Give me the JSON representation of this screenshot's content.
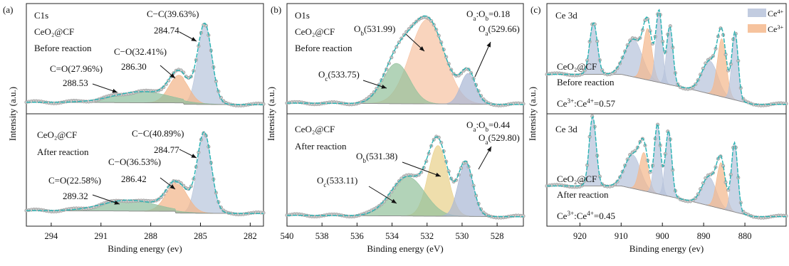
{
  "colors": {
    "frame": "#222222",
    "fit": "#26b3b3",
    "raw": "#9a9a9a",
    "background_line": "#8a8a8a",
    "C_CC": "#b9c6dc",
    "C_CO": "#f3b68a",
    "C_O_double": "#8fbf9e",
    "O_a": "#aab8d6",
    "O_b_before": "#f6c3a4",
    "O_b_after": "#e9d18c",
    "O_c": "#94c29d",
    "Ce4": "#b7c3db",
    "Ce3": "#f4b98d"
  },
  "chart_data": [
    {
      "type": "area",
      "panel_label": "(a)",
      "ylabel": "Intensity (a.u.)",
      "xlabel": "Binding energy (ev)",
      "xlim": [
        295.5,
        281.2
      ],
      "x_reversed": true,
      "xticks": [
        294,
        291,
        288,
        285,
        282
      ],
      "subplots": [
        {
          "element": "C1s",
          "sample": "CeO₂@CF",
          "condition": "Before reaction",
          "peaks": [
            {
              "name": "C−C",
              "percent": "C−C(39.63%)",
              "center": 284.74,
              "center_label": "284.74",
              "height": 0.86,
              "fwhm": 1.0
            },
            {
              "name": "C−O",
              "percent": "C−O(32.41%)",
              "center": 286.3,
              "center_label": "286.30",
              "height": 0.3,
              "fwhm": 1.4
            },
            {
              "name": "C=O",
              "percent": "C=O(27.96%)",
              "center": 288.53,
              "center_label": "288.53",
              "height": 0.12,
              "fwhm": 4.0
            }
          ]
        },
        {
          "sample": "CeO₂@CF",
          "condition": "After reaction",
          "peaks": [
            {
              "name": "C−C",
              "percent": "C−C(40.89%)",
              "center": 284.77,
              "center_label": "284.77",
              "height": 0.88,
              "fwhm": 1.0
            },
            {
              "name": "C−O",
              "percent": "C−O(36.53%)",
              "center": 286.42,
              "center_label": "286.42",
              "height": 0.32,
              "fwhm": 1.5
            },
            {
              "name": "C=O",
              "percent": "C=O(22.58%)",
              "center": 289.32,
              "center_label": "289.32",
              "height": 0.12,
              "fwhm": 3.8
            }
          ]
        }
      ]
    },
    {
      "type": "area",
      "panel_label": "(b)",
      "ylabel": "Intensity (a.u.)",
      "xlabel": "Binding energy (eV)",
      "xlim": [
        540,
        526.5
      ],
      "x_reversed": true,
      "xticks": [
        540,
        538,
        536,
        534,
        532,
        530,
        528
      ],
      "subplots": [
        {
          "element": "O1s",
          "sample": "CeO₂@CF",
          "condition": "Before reaction",
          "ratio_text": "Oₐ:O_b=0.18",
          "ratio": {
            "lhs": "O",
            "lhs_sub": "a",
            "rhs": "O",
            "rhs_sub": "b",
            "value": "0.18"
          },
          "peaks": [
            {
              "name": "Ob",
              "main": "O",
              "sub": "b",
              "center": 531.99,
              "center_label": "(531.99)",
              "height": 0.88,
              "fwhm": 2.3
            },
            {
              "name": "Oc",
              "main": "O",
              "sub": "c",
              "center": 533.75,
              "center_label": "(533.75)",
              "height": 0.42,
              "fwhm": 1.8
            },
            {
              "name": "Oa",
              "main": "O",
              "sub": "a",
              "center": 529.66,
              "center_label": "(529.66)",
              "height": 0.32,
              "fwhm": 1.0
            }
          ]
        },
        {
          "sample": "CeO₂@CF",
          "condition": "After reaction",
          "ratio_text": "Oₐ:O_b=0.44",
          "ratio": {
            "lhs": "O",
            "lhs_sub": "a",
            "rhs": "O",
            "rhs_sub": "b",
            "value": "0.44"
          },
          "peaks": [
            {
              "name": "Ob",
              "main": "O",
              "sub": "b",
              "center": 531.38,
              "center_label": "(531.38)",
              "height": 0.72,
              "fwhm": 1.3
            },
            {
              "name": "Oc",
              "main": "O",
              "sub": "c",
              "center": 533.11,
              "center_label": "(533.11)",
              "height": 0.4,
              "fwhm": 2.3
            },
            {
              "name": "Oa",
              "main": "O",
              "sub": "a",
              "center": 529.8,
              "center_label": "(529.80)",
              "height": 0.55,
              "fwhm": 1.0
            }
          ]
        }
      ]
    },
    {
      "type": "area",
      "panel_label": "(c)",
      "ylabel": "Intensity (a.u.)",
      "xlabel": "Binding energy (ev)",
      "xlim": [
        928,
        870
      ],
      "x_reversed": true,
      "xticks": [
        920,
        910,
        900,
        890,
        880
      ],
      "legend": [
        {
          "name": "Ce⁴⁺",
          "main": "Ce",
          "sup": "4+",
          "color_key": "Ce4"
        },
        {
          "name": "Ce³⁺",
          "main": "Ce",
          "sup": "3+",
          "color_key": "Ce3"
        }
      ],
      "legend_position": "top-right",
      "subplots": [
        {
          "element": "Ce 3d",
          "sample": "CeO₂@CF",
          "condition": "Before reaction",
          "ratio_text": "Ce³⁺:Ce⁴⁺=0.57",
          "ratio": {
            "lhs": "Ce",
            "lhs_sup": "3+",
            "rhs": "Ce",
            "rhs_sup": "4+",
            "value": "0.57"
          },
          "peaks": [
            {
              "species": "Ce4",
              "center": 916.7,
              "height": 0.55,
              "fwhm": 2.2
            },
            {
              "species": "Ce4",
              "center": 907.0,
              "height": 0.4,
              "fwhm": 5.0
            },
            {
              "species": "Ce3",
              "center": 903.6,
              "height": 0.55,
              "fwhm": 2.5
            },
            {
              "species": "Ce4",
              "center": 900.8,
              "height": 0.75,
              "fwhm": 1.8
            },
            {
              "species": "Ce4",
              "center": 898.2,
              "height": 0.62,
              "fwhm": 1.8
            },
            {
              "species": "Ce4",
              "center": 888.5,
              "height": 0.35,
              "fwhm": 4.5
            },
            {
              "species": "Ce3",
              "center": 885.6,
              "height": 0.62,
              "fwhm": 2.5
            },
            {
              "species": "Ce4",
              "center": 882.4,
              "height": 0.72,
              "fwhm": 1.8
            }
          ]
        },
        {
          "element": "Ce 3d",
          "sample": "CeO₂@CF",
          "condition": "After reaction",
          "ratio_text": "Ce³⁺:Ce⁴⁺=0.45",
          "ratio": {
            "lhs": "Ce",
            "lhs_sup": "3+",
            "rhs": "Ce",
            "rhs_sup": "4+",
            "value": "0.45"
          },
          "peaks": [
            {
              "species": "Ce4",
              "center": 916.9,
              "height": 0.72,
              "fwhm": 2.0
            },
            {
              "species": "Ce4",
              "center": 907.2,
              "height": 0.35,
              "fwhm": 4.5
            },
            {
              "species": "Ce3",
              "center": 904.5,
              "height": 0.4,
              "fwhm": 2.5
            },
            {
              "species": "Ce4",
              "center": 901.2,
              "height": 0.72,
              "fwhm": 1.8
            },
            {
              "species": "Ce4",
              "center": 898.5,
              "height": 0.68,
              "fwhm": 1.8
            },
            {
              "species": "Ce4",
              "center": 888.7,
              "height": 0.3,
              "fwhm": 4.0
            },
            {
              "species": "Ce3",
              "center": 885.8,
              "height": 0.48,
              "fwhm": 2.5
            },
            {
              "species": "Ce4",
              "center": 882.5,
              "height": 0.72,
              "fwhm": 1.8
            }
          ]
        }
      ]
    }
  ]
}
